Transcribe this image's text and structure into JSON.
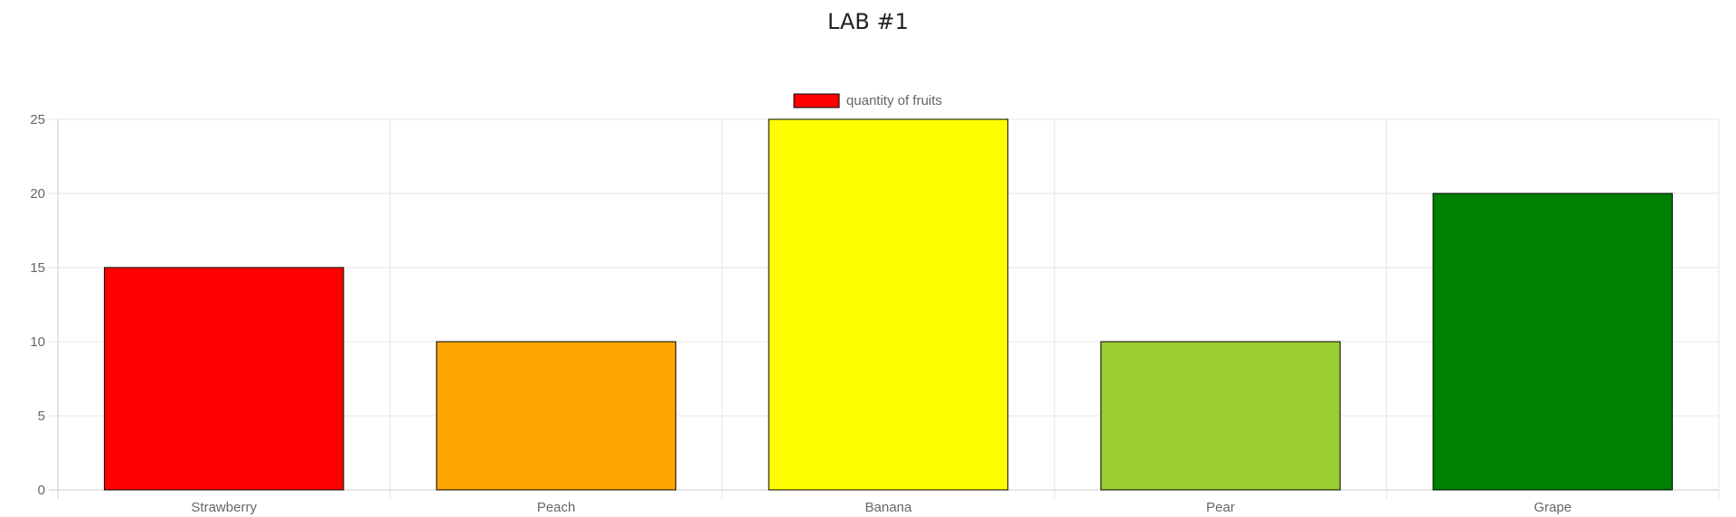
{
  "page": {
    "title": "LAB #1"
  },
  "chart_data": {
    "type": "bar",
    "title": "",
    "xlabel": "",
    "ylabel": "",
    "categories": [
      "Strawberry",
      "Peach",
      "Banana",
      "Pear",
      "Grape"
    ],
    "series": [
      {
        "name": "quantity of fruits",
        "values": [
          15,
          10,
          25,
          10,
          20
        ],
        "colors": [
          "#ff0000",
          "#ffa500",
          "#ffff00",
          "#9acd32",
          "#008000"
        ],
        "border_color": "#000000"
      }
    ],
    "ylim": [
      0,
      25
    ],
    "yticks": [
      0,
      5,
      10,
      15,
      20,
      25
    ],
    "grid": true,
    "legend": {
      "placement": "top-center",
      "swatch_color": "#ff0000"
    }
  }
}
